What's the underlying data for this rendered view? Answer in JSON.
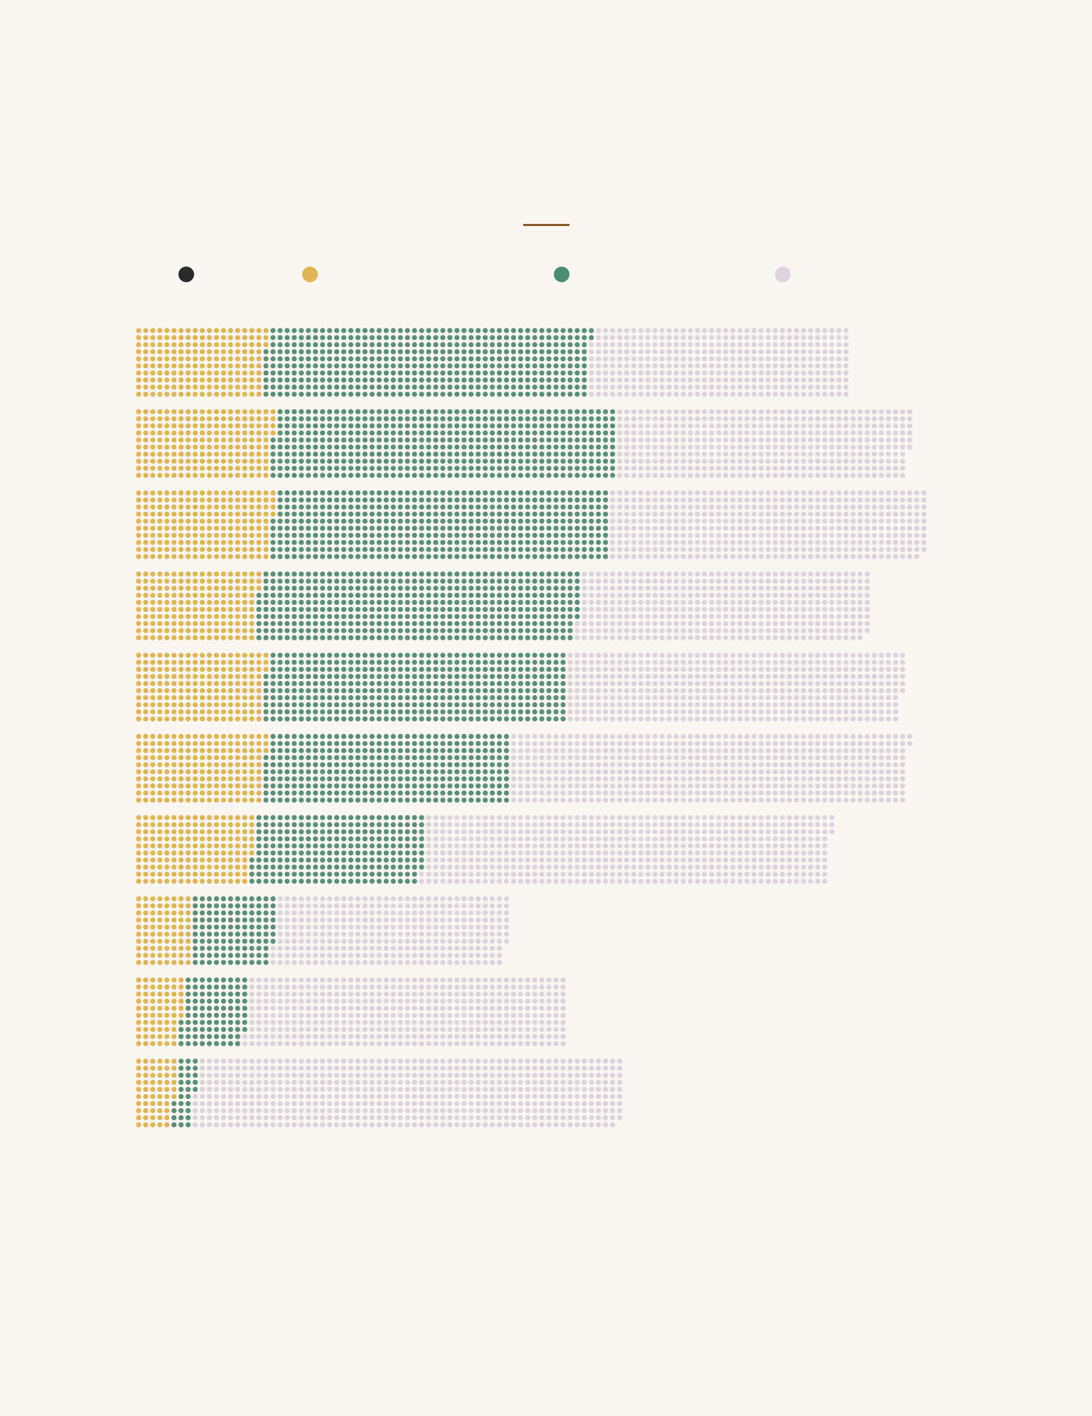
{
  "chart_data": {
    "type": "bar",
    "subtype": "stacked-dot-bar",
    "title": "",
    "xlabel": "",
    "ylabel": "",
    "dots_per_column": 10,
    "categories": [
      "",
      "",
      "",
      "",
      "",
      "",
      "",
      "",
      "",
      ""
    ],
    "legend": {
      "placement": "top",
      "items": [
        {
          "name": "",
          "color": "#2a2a2a"
        },
        {
          "name": "",
          "color": "#e0b552"
        },
        {
          "name": "",
          "color": "#4a9070"
        },
        {
          "name": "",
          "color": "#ddd4de"
        }
      ]
    },
    "series": [
      {
        "name": "",
        "color": "#2a2a2a",
        "values": [
          0,
          0,
          0,
          0,
          0,
          0,
          0,
          0,
          0,
          0
        ]
      },
      {
        "name": "",
        "color": "#e0b552",
        "values": [
          183,
          194,
          194,
          173,
          183,
          183,
          166,
          80,
          66,
          56
        ]
      },
      {
        "name": "",
        "color": "#5a9078",
        "values": [
          459,
          486,
          476,
          454,
          427,
          347,
          242,
          117,
          92,
          29
        ]
      },
      {
        "name": "",
        "color": "#ddd4de",
        "values": [
          368,
          416,
          449,
          412,
          476,
          562,
          575,
          330,
          452,
          604
        ]
      }
    ]
  }
}
